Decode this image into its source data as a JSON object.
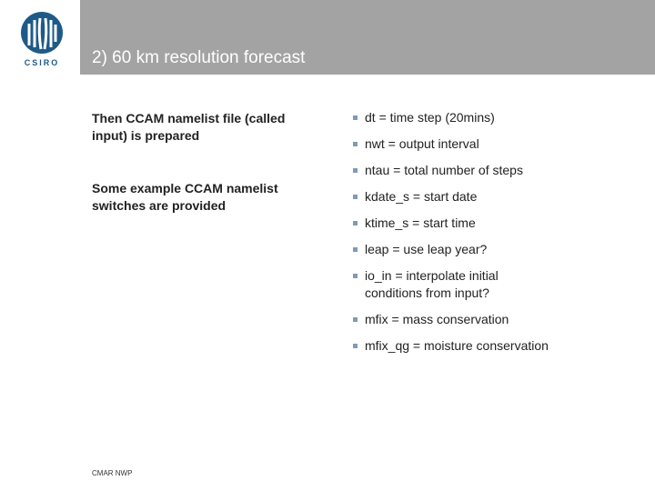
{
  "header": {
    "logo": "CSIRO",
    "title": "2) 60 km resolution forecast"
  },
  "left": [
    "Then CCAM namelist file (called input) is prepared",
    "Some example CCAM namelist switches are provided"
  ],
  "bullets": [
    "dt = time step (20mins)",
    "nwt = output interval",
    "ntau = total number of steps",
    "kdate_s = start date",
    "ktime_s = start time",
    "leap = use leap year?",
    "io_in = interpolate initial conditions from input?",
    "mfix = mass conservation",
    "mfix_qg = moisture conservation"
  ],
  "footer": "CMAR NWP"
}
